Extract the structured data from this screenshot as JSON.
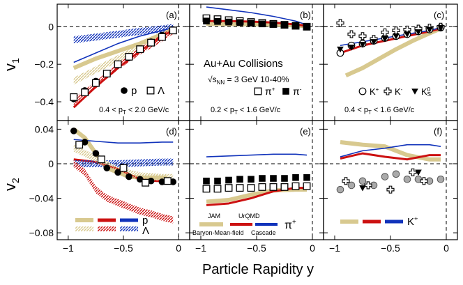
{
  "figure": {
    "xlabel": "Particle Rapidity y",
    "ylabel_top": "v",
    "ylabel_top_sub": "1",
    "ylabel_bottom": "v",
    "ylabel_bottom_sub": "2",
    "collision": "Au+Au Collisions",
    "energy_prefix": "√s",
    "energy_sub": "NN",
    "energy_suffix": " = 3 GeV 10-40%",
    "model_labels": {
      "jam": "JAM",
      "urqmd": "UrQMD",
      "bmf": "Baryon-Mean-field",
      "cascade": "Cascade"
    },
    "colors": {
      "jam": "#d8c98f",
      "bmf": "#cc1111",
      "cascade": "#1133bb",
      "black": "#000000",
      "gray": "#aaaaaa"
    }
  },
  "axes": {
    "x_range": [
      -1.1,
      0.1
    ],
    "x_ticks": [
      -1,
      -0.5,
      0
    ],
    "x_tick_labels": [
      "−1",
      "−0.5",
      "0"
    ],
    "v1_range": [
      -0.5,
      0.12
    ],
    "v1_ticks": [
      0,
      -0.2,
      -0.4
    ],
    "v1_tick_labels": [
      "0",
      "−0.2",
      "−0.4"
    ],
    "v2_range": [
      -0.088,
      0.05
    ],
    "v2_ticks": [
      0.04,
      0,
      -0.04,
      -0.08
    ],
    "v2_tick_labels": [
      "0.04",
      "0",
      "−0.04",
      "−0.08"
    ]
  },
  "chart_data": [
    {
      "panel": "(a)",
      "type": "scatter",
      "observable": "v1",
      "pt_text": "0.4 < p",
      "pt_sub": "T",
      "pt_range": " < 2.0 GeV/c",
      "legend": [
        "p",
        "Λ"
      ],
      "series": [
        {
          "name": "p",
          "marker": "filled-circle",
          "x": [
            -0.95,
            -0.85,
            -0.75,
            -0.65,
            -0.55,
            -0.45,
            -0.35,
            -0.25,
            -0.15,
            -0.05
          ],
          "y": [
            -0.385,
            -0.34,
            -0.29,
            -0.25,
            -0.205,
            -0.165,
            -0.12,
            -0.08,
            -0.045,
            -0.015
          ]
        },
        {
          "name": "Λ",
          "marker": "open-square",
          "x": [
            -0.95,
            -0.85,
            -0.75,
            -0.65,
            -0.55,
            -0.45,
            -0.35,
            -0.25,
            -0.15,
            -0.05
          ],
          "y": [
            -0.375,
            -0.35,
            -0.3,
            -0.25,
            -0.2,
            -0.16,
            -0.12,
            -0.085,
            -0.055,
            -0.02
          ]
        },
        {
          "name": "JAM p",
          "model": "jam",
          "x": [
            -0.95,
            -0.75,
            -0.55,
            -0.35,
            -0.15,
            -0.05
          ],
          "y": [
            -0.22,
            -0.17,
            -0.13,
            -0.09,
            -0.04,
            -0.015
          ]
        },
        {
          "name": "Baryon-Mean-field p",
          "model": "bmf",
          "x": [
            -0.95,
            -0.75,
            -0.55,
            -0.35,
            -0.15,
            -0.05
          ],
          "y": [
            -0.43,
            -0.32,
            -0.22,
            -0.13,
            -0.05,
            -0.02
          ]
        },
        {
          "name": "Cascade p",
          "model": "cascade",
          "x": [
            -0.95,
            -0.75,
            -0.55,
            -0.35,
            -0.15,
            -0.05
          ],
          "y": [
            -0.19,
            -0.14,
            -0.09,
            -0.05,
            -0.02,
            -0.005
          ]
        },
        {
          "name": "Cascade Λ",
          "model": "cascade-hatch",
          "x": [
            -0.95,
            -0.75,
            -0.55,
            -0.35,
            -0.15,
            -0.05
          ],
          "y": [
            -0.07,
            -0.055,
            -0.04,
            -0.025,
            -0.012,
            -0.004
          ]
        },
        {
          "name": "JAM Λ",
          "model": "jam-hatch",
          "x": [
            -0.95,
            -0.75,
            -0.55,
            -0.35,
            -0.15,
            -0.05
          ],
          "y": [
            -0.29,
            -0.23,
            -0.17,
            -0.11,
            -0.05,
            -0.02
          ]
        },
        {
          "name": "Baryon-Mean-field Λ",
          "model": "bmf-hatch",
          "x": [
            -0.95,
            -0.75,
            -0.55,
            -0.35,
            -0.15,
            -0.05
          ],
          "y": [
            -0.4,
            -0.31,
            -0.21,
            -0.13,
            -0.06,
            -0.02
          ]
        }
      ]
    },
    {
      "panel": "(b)",
      "type": "scatter",
      "observable": "v1",
      "pt_text": "0.2 < p",
      "pt_sub": "T",
      "pt_range": " < 1.6 GeV/c",
      "legend": [
        "π",
        "π"
      ],
      "legend_sup": [
        "+",
        "-"
      ],
      "series": [
        {
          "name": "π+",
          "marker": "open-square",
          "x": [
            -0.95,
            -0.85,
            -0.75,
            -0.65,
            -0.55,
            -0.45,
            -0.35,
            -0.25,
            -0.15,
            -0.05
          ],
          "y": [
            0.045,
            0.04,
            0.035,
            0.03,
            0.025,
            0.02,
            0.015,
            0.01,
            0.005,
            0.0
          ]
        },
        {
          "name": "π-",
          "marker": "filled-square",
          "x": [
            -0.95,
            -0.85,
            -0.75,
            -0.65,
            -0.55,
            -0.45,
            -0.35,
            -0.25,
            -0.15,
            -0.05
          ],
          "y": [
            0.03,
            0.028,
            0.025,
            0.022,
            0.019,
            0.015,
            0.012,
            0.008,
            0.004,
            0.0
          ]
        },
        {
          "name": "JAM π",
          "model": "jam",
          "x": [
            -0.95,
            -0.75,
            -0.55,
            -0.35,
            -0.15,
            -0.05
          ],
          "y": [
            0.015,
            0.014,
            0.013,
            0.011,
            0.007,
            0.003
          ]
        },
        {
          "name": "Baryon-Mean-field π",
          "model": "bmf",
          "x": [
            -0.95,
            -0.75,
            -0.55,
            -0.35,
            -0.15,
            -0.05
          ],
          "y": [
            0.03,
            0.03,
            0.027,
            0.022,
            0.012,
            0.004
          ]
        },
        {
          "name": "Cascade π",
          "model": "cascade",
          "x": [
            -0.95,
            -0.75,
            -0.55,
            -0.35,
            -0.15,
            -0.05
          ],
          "y": [
            0.105,
            0.09,
            0.075,
            0.055,
            0.03,
            0.01
          ]
        }
      ]
    },
    {
      "panel": "(c)",
      "type": "scatter",
      "observable": "v1",
      "pt_text": "0.4 < p",
      "pt_sub": "T",
      "pt_range": " < 1.6 GeV/c",
      "legend": [
        "K",
        "K",
        "K"
      ],
      "legend_sup": [
        "+",
        "-",
        "0"
      ],
      "legend_sub": [
        "",
        "",
        "S"
      ],
      "series": [
        {
          "name": "K+",
          "marker": "open-circle",
          "x": [
            -0.95,
            -0.85,
            -0.75,
            -0.65,
            -0.55,
            -0.45,
            -0.35,
            -0.25,
            -0.15,
            -0.05
          ],
          "y": [
            -0.14,
            -0.1,
            -0.09,
            -0.075,
            -0.06,
            -0.05,
            -0.04,
            -0.025,
            -0.015,
            -0.005
          ]
        },
        {
          "name": "K-",
          "marker": "open-cross",
          "x": [
            -0.95,
            -0.85,
            -0.75,
            -0.65,
            -0.55,
            -0.45,
            -0.35,
            -0.25,
            -0.15,
            -0.05
          ],
          "y": [
            0.02,
            -0.04,
            -0.05,
            -0.065,
            -0.03,
            -0.02,
            -0.015,
            -0.01,
            -0.005,
            0.0
          ]
        },
        {
          "name": "K0S",
          "marker": "filled-triangle-down",
          "x": [
            -0.95,
            -0.85,
            -0.75,
            -0.65,
            -0.55,
            -0.45,
            -0.35,
            -0.25,
            -0.15,
            -0.05
          ],
          "y": [
            -0.12,
            -0.11,
            -0.095,
            -0.08,
            -0.065,
            -0.05,
            -0.04,
            -0.028,
            -0.015,
            -0.005
          ]
        },
        {
          "name": "JAM K",
          "model": "jam",
          "x": [
            -0.9,
            -0.75,
            -0.6,
            -0.45,
            -0.3,
            -0.15,
            -0.05
          ],
          "y": [
            -0.26,
            -0.22,
            -0.17,
            -0.12,
            -0.075,
            -0.035,
            -0.01
          ]
        },
        {
          "name": "Baryon-Mean-field K",
          "model": "bmf",
          "x": [
            -0.95,
            -0.75,
            -0.55,
            -0.35,
            -0.15,
            -0.05
          ],
          "y": [
            -0.14,
            -0.1,
            -0.075,
            -0.05,
            -0.025,
            -0.01
          ]
        },
        {
          "name": "Cascade K",
          "model": "cascade",
          "x": [
            -0.95,
            -0.75,
            -0.55,
            -0.35,
            -0.15,
            -0.05
          ],
          "y": [
            -0.1,
            -0.08,
            -0.06,
            -0.04,
            -0.02,
            -0.005
          ]
        }
      ]
    },
    {
      "panel": "(d)",
      "type": "scatter",
      "observable": "v2",
      "legend": [
        "p",
        "Λ"
      ],
      "series": [
        {
          "name": "p",
          "marker": "filled-circle",
          "x": [
            -0.95,
            -0.85,
            -0.75,
            -0.65,
            -0.55,
            -0.45,
            -0.35,
            -0.25,
            -0.15,
            -0.05
          ],
          "y": [
            0.038,
            0.025,
            0.012,
            -0.005,
            -0.01,
            -0.015,
            -0.018,
            -0.02,
            -0.021,
            -0.021
          ]
        },
        {
          "name": "Λ",
          "marker": "open-square",
          "x": [
            -0.9,
            -0.7,
            -0.5,
            -0.3,
            -0.1
          ],
          "y": [
            0.022,
            0.005,
            -0.005,
            -0.022,
            -0.02
          ]
        },
        {
          "name": "JAM p",
          "model": "jam",
          "x": [
            -0.95,
            -0.85,
            -0.75,
            -0.65,
            -0.55,
            -0.45,
            -0.35,
            -0.25,
            -0.1
          ],
          "y": [
            0.04,
            0.03,
            0.012,
            -0.005,
            -0.01,
            -0.015,
            -0.016,
            -0.016,
            -0.016
          ]
        },
        {
          "name": "Baryon-Mean-field p",
          "model": "bmf",
          "x": [
            -0.95,
            -0.75,
            -0.55,
            -0.35,
            -0.2,
            -0.1
          ],
          "y": [
            0.005,
            0.002,
            -0.006,
            -0.018,
            -0.02,
            -0.02
          ]
        },
        {
          "name": "Cascade p",
          "model": "cascade",
          "x": [
            -0.95,
            -0.75,
            -0.55,
            -0.35,
            -0.15,
            -0.05
          ],
          "y": [
            0.028,
            0.026,
            0.024,
            0.024,
            0.025,
            0.025
          ]
        },
        {
          "name": "Cascade Λ",
          "model": "cascade-hatch",
          "x": [
            -0.95,
            -0.75,
            -0.55,
            -0.35,
            -0.15,
            -0.05
          ],
          "y": [
            0.0,
            0.0,
            0.0,
            0.001,
            0.002,
            0.002
          ]
        },
        {
          "name": "Baryon-Mean-field Λ",
          "model": "bmf-hatch",
          "x": [
            -0.95,
            -0.85,
            -0.75,
            -0.65,
            -0.55,
            -0.45,
            -0.35,
            -0.25,
            -0.15,
            -0.05
          ],
          "y": [
            0.0,
            -0.01,
            -0.03,
            -0.04,
            -0.045,
            -0.05,
            -0.055,
            -0.058,
            -0.062,
            -0.065
          ]
        },
        {
          "name": "JAM Λ",
          "model": "jam-hatch",
          "x": [
            -0.95,
            -0.75,
            -0.55,
            -0.35,
            -0.15,
            -0.05
          ],
          "y": [
            0.018,
            0.006,
            -0.008,
            -0.014,
            -0.016,
            -0.016
          ]
        }
      ]
    },
    {
      "panel": "(e)",
      "type": "scatter",
      "observable": "v2",
      "legend": [
        "π"
      ],
      "legend_sup": [
        "+"
      ],
      "series": [
        {
          "name": "π-",
          "marker": "filled-square",
          "x": [
            -0.95,
            -0.85,
            -0.75,
            -0.65,
            -0.55,
            -0.45,
            -0.35,
            -0.25,
            -0.15,
            -0.05
          ],
          "y": [
            -0.02,
            -0.02,
            -0.019,
            -0.018,
            -0.018,
            -0.017,
            -0.017,
            -0.017,
            -0.016,
            -0.016
          ]
        },
        {
          "name": "π+",
          "marker": "open-square",
          "x": [
            -0.95,
            -0.85,
            -0.75,
            -0.65,
            -0.55,
            -0.45,
            -0.35,
            -0.25,
            -0.15,
            -0.05
          ],
          "y": [
            -0.029,
            -0.029,
            -0.028,
            -0.028,
            -0.028,
            -0.027,
            -0.027,
            -0.027,
            -0.026,
            -0.026
          ]
        },
        {
          "name": "JAM π",
          "model": "jam",
          "x": [
            -0.95,
            -0.75,
            -0.55,
            -0.35,
            -0.15,
            -0.05
          ],
          "y": [
            -0.044,
            -0.042,
            -0.036,
            -0.031,
            -0.03,
            -0.03
          ]
        },
        {
          "name": "Baryon-Mean-field π",
          "model": "bmf",
          "x": [
            -0.95,
            -0.75,
            -0.55,
            -0.35,
            -0.15,
            -0.05
          ],
          "y": [
            -0.048,
            -0.046,
            -0.04,
            -0.032,
            -0.028,
            -0.028
          ]
        },
        {
          "name": "Cascade π",
          "model": "cascade",
          "x": [
            -0.95,
            -0.75,
            -0.55,
            -0.35,
            -0.15,
            -0.05
          ],
          "y": [
            0.008,
            0.009,
            0.01,
            0.011,
            0.011,
            0.01
          ]
        }
      ]
    },
    {
      "panel": "(f)",
      "type": "scatter",
      "observable": "v2",
      "legend": [
        "K"
      ],
      "legend_sup": [
        "+"
      ],
      "series": [
        {
          "name": "K+",
          "marker": "gray-circle",
          "x": [
            -0.95,
            -0.85,
            -0.75,
            -0.65,
            -0.55,
            -0.45,
            -0.35,
            -0.25,
            -0.15,
            -0.05
          ],
          "y": [
            -0.03,
            -0.025,
            -0.02,
            -0.025,
            -0.015,
            -0.012,
            -0.018,
            -0.018,
            -0.02,
            -0.018
          ]
        },
        {
          "name": "K-",
          "marker": "open-cross",
          "x": [
            -0.9,
            -0.7,
            -0.5,
            -0.3,
            -0.2
          ],
          "y": [
            -0.02,
            -0.025,
            -0.03,
            -0.01,
            -0.02
          ]
        },
        {
          "name": "K0S",
          "marker": "filled-triangle-down",
          "x": [
            -0.75,
            -0.25
          ],
          "y": [
            -0.028,
            -0.01
          ]
        },
        {
          "name": "JAM K",
          "model": "jam",
          "x": [
            -0.95,
            -0.75,
            -0.55,
            -0.35,
            -0.15,
            -0.05
          ],
          "y": [
            0.025,
            0.022,
            0.02,
            0.01,
            0.005,
            0.005
          ]
        },
        {
          "name": "Baryon-Mean-field K",
          "model": "bmf",
          "x": [
            -0.95,
            -0.75,
            -0.55,
            -0.35,
            -0.15,
            -0.05
          ],
          "y": [
            0.006,
            0.012,
            0.008,
            0.005,
            0.01,
            0.01
          ]
        },
        {
          "name": "Cascade K",
          "model": "cascade",
          "x": [
            -0.95,
            -0.75,
            -0.55,
            -0.35,
            -0.15,
            -0.05
          ],
          "y": [
            0.008,
            0.015,
            0.018,
            0.022,
            0.022,
            0.02
          ]
        }
      ]
    }
  ]
}
